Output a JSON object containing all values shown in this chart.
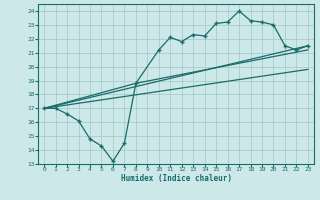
{
  "xlabel": "Humidex (Indice chaleur)",
  "bg_color": "#cce8e8",
  "grid_color": "#aacccc",
  "line_color": "#1a6b6b",
  "xlim": [
    -0.5,
    23.5
  ],
  "ylim": [
    13,
    24.5
  ],
  "yticks": [
    13,
    14,
    15,
    16,
    17,
    18,
    19,
    20,
    21,
    22,
    23,
    24
  ],
  "xticks": [
    0,
    1,
    2,
    3,
    4,
    5,
    6,
    7,
    8,
    9,
    10,
    11,
    12,
    13,
    14,
    15,
    16,
    17,
    18,
    19,
    20,
    21,
    22,
    23
  ],
  "line1_x": [
    0,
    1,
    2,
    3,
    4,
    5,
    6,
    7,
    8,
    10,
    11,
    12,
    13,
    14,
    15,
    16,
    17,
    18,
    19,
    20,
    21,
    22,
    23
  ],
  "line1_y": [
    17.0,
    17.0,
    16.6,
    16.1,
    14.8,
    14.3,
    13.2,
    14.5,
    18.8,
    21.2,
    22.1,
    21.8,
    22.3,
    22.2,
    23.1,
    23.2,
    24.0,
    23.3,
    23.2,
    23.0,
    21.5,
    21.2,
    21.5
  ],
  "line2_x": [
    0,
    23
  ],
  "line2_y": [
    17.0,
    21.5
  ],
  "line3_x": [
    0,
    23
  ],
  "line3_y": [
    17.0,
    19.8
  ],
  "line4_x": [
    0,
    8,
    23
  ],
  "line4_y": [
    17.0,
    18.8,
    21.2
  ]
}
